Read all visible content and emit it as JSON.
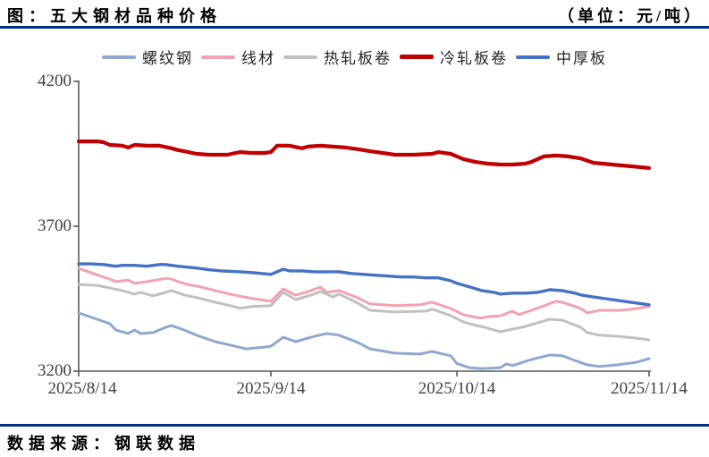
{
  "header": {
    "title": "图：五大钢材品种价格",
    "unit": "（单位：元/吨）"
  },
  "footer": {
    "source": "数据来源：钢联数据"
  },
  "colors": {
    "rule": "#003087",
    "axis": "#595959",
    "tick_label": "#404040"
  },
  "chart_data": {
    "type": "line",
    "title": "五大钢材品种价格",
    "unit": "元/吨",
    "legend_position": "top",
    "grid": false,
    "xlim": [
      0,
      92
    ],
    "ylim": [
      3200,
      4200
    ],
    "x_note": "x = days since 2025/8/14",
    "xticks": [
      {
        "label": "2025/8/14",
        "day": 0
      },
      {
        "label": "2025/9/14",
        "day": 31
      },
      {
        "label": "2025/10/14",
        "day": 61
      },
      {
        "label": "2025/11/14",
        "day": 92
      }
    ],
    "yticks": [
      {
        "label": "4200",
        "value": 4200
      },
      {
        "label": "3700",
        "value": 3700
      },
      {
        "label": "3200",
        "value": 3200
      }
    ],
    "series": [
      {
        "name": "螺纹钢",
        "key": "rebar",
        "color": "#8FA8CE",
        "width": 3,
        "points": [
          [
            0,
            3401
          ],
          [
            3,
            3379
          ],
          [
            5,
            3364
          ],
          [
            6,
            3342
          ],
          [
            8,
            3330
          ],
          [
            9,
            3342
          ],
          [
            10,
            3330
          ],
          [
            12,
            3333
          ],
          [
            14,
            3351
          ],
          [
            15,
            3357
          ],
          [
            17,
            3342
          ],
          [
            19,
            3324
          ],
          [
            22,
            3302
          ],
          [
            25,
            3287
          ],
          [
            27,
            3277
          ],
          [
            30,
            3283
          ],
          [
            31,
            3286
          ],
          [
            33,
            3317
          ],
          [
            35,
            3302
          ],
          [
            38,
            3320
          ],
          [
            40,
            3330
          ],
          [
            42,
            3324
          ],
          [
            45,
            3299
          ],
          [
            47,
            3277
          ],
          [
            51,
            3262
          ],
          [
            55,
            3259
          ],
          [
            57,
            3268
          ],
          [
            60,
            3253
          ],
          [
            61,
            3226
          ],
          [
            63,
            3212
          ],
          [
            65,
            3209
          ],
          [
            68,
            3212
          ],
          [
            69,
            3225
          ],
          [
            70,
            3219
          ],
          [
            73,
            3240
          ],
          [
            76,
            3256
          ],
          [
            78,
            3253
          ],
          [
            80,
            3237
          ],
          [
            82,
            3222
          ],
          [
            84,
            3216
          ],
          [
            87,
            3222
          ],
          [
            90,
            3231
          ],
          [
            92,
            3243
          ]
        ]
      },
      {
        "name": "线材",
        "key": "wire-rod",
        "color": "#F2A2B0",
        "width": 3,
        "points": [
          [
            0,
            3555
          ],
          [
            3,
            3532
          ],
          [
            5,
            3518
          ],
          [
            6,
            3509
          ],
          [
            8,
            3514
          ],
          [
            9,
            3503
          ],
          [
            11,
            3509
          ],
          [
            14,
            3520
          ],
          [
            15,
            3518
          ],
          [
            16,
            3509
          ],
          [
            18,
            3497
          ],
          [
            19,
            3494
          ],
          [
            22,
            3478
          ],
          [
            25,
            3463
          ],
          [
            28,
            3451
          ],
          [
            31,
            3441
          ],
          [
            33,
            3484
          ],
          [
            35,
            3462
          ],
          [
            37,
            3475
          ],
          [
            39,
            3490
          ],
          [
            40,
            3472
          ],
          [
            42,
            3478
          ],
          [
            45,
            3453
          ],
          [
            47,
            3432
          ],
          [
            51,
            3426
          ],
          [
            55,
            3429
          ],
          [
            57,
            3438
          ],
          [
            60,
            3416
          ],
          [
            62,
            3395
          ],
          [
            64,
            3386
          ],
          [
            65,
            3383
          ],
          [
            66,
            3388
          ],
          [
            68,
            3391
          ],
          [
            70,
            3407
          ],
          [
            71,
            3395
          ],
          [
            73,
            3410
          ],
          [
            75,
            3425
          ],
          [
            77,
            3441
          ],
          [
            78,
            3438
          ],
          [
            81,
            3416
          ],
          [
            82,
            3401
          ],
          [
            84,
            3410
          ],
          [
            87,
            3410
          ],
          [
            89,
            3413
          ],
          [
            92,
            3423
          ]
        ]
      },
      {
        "name": "热轧板卷",
        "key": "hot-rolled-coil",
        "color": "#C0C0C0",
        "width": 3,
        "points": [
          [
            0,
            3499
          ],
          [
            3,
            3496
          ],
          [
            5,
            3487
          ],
          [
            7,
            3478
          ],
          [
            9,
            3466
          ],
          [
            10,
            3472
          ],
          [
            12,
            3460
          ],
          [
            14,
            3472
          ],
          [
            15,
            3478
          ],
          [
            17,
            3463
          ],
          [
            19,
            3454
          ],
          [
            22,
            3438
          ],
          [
            25,
            3423
          ],
          [
            26,
            3417
          ],
          [
            28,
            3423
          ],
          [
            31,
            3426
          ],
          [
            33,
            3472
          ],
          [
            35,
            3447
          ],
          [
            38,
            3466
          ],
          [
            39,
            3475
          ],
          [
            41,
            3456
          ],
          [
            42,
            3466
          ],
          [
            45,
            3435
          ],
          [
            47,
            3410
          ],
          [
            51,
            3404
          ],
          [
            56,
            3407
          ],
          [
            57,
            3414
          ],
          [
            60,
            3392
          ],
          [
            62,
            3370
          ],
          [
            64,
            3358
          ],
          [
            65,
            3354
          ],
          [
            68,
            3336
          ],
          [
            72,
            3354
          ],
          [
            74,
            3367
          ],
          [
            76,
            3379
          ],
          [
            78,
            3376
          ],
          [
            81,
            3351
          ],
          [
            82,
            3333
          ],
          [
            84,
            3324
          ],
          [
            87,
            3320
          ],
          [
            90,
            3314
          ],
          [
            92,
            3308
          ]
        ]
      },
      {
        "name": "冷轧板卷",
        "key": "cold-rolled-coil",
        "color": "#C00000",
        "width": 4.2,
        "points": [
          [
            0,
            3993
          ],
          [
            3,
            3993
          ],
          [
            4,
            3990
          ],
          [
            5,
            3981
          ],
          [
            7,
            3978
          ],
          [
            8,
            3972
          ],
          [
            9,
            3981
          ],
          [
            11,
            3978
          ],
          [
            13,
            3978
          ],
          [
            15,
            3969
          ],
          [
            16,
            3963
          ],
          [
            17,
            3959
          ],
          [
            19,
            3950
          ],
          [
            21,
            3947
          ],
          [
            24,
            3947
          ],
          [
            26,
            3956
          ],
          [
            28,
            3953
          ],
          [
            30,
            3953
          ],
          [
            31,
            3956
          ],
          [
            32,
            3978
          ],
          [
            34,
            3978
          ],
          [
            36,
            3969
          ],
          [
            37,
            3975
          ],
          [
            39,
            3978
          ],
          [
            41,
            3975
          ],
          [
            43,
            3972
          ],
          [
            45,
            3966
          ],
          [
            47,
            3959
          ],
          [
            49,
            3953
          ],
          [
            51,
            3947
          ],
          [
            54,
            3947
          ],
          [
            57,
            3950
          ],
          [
            58,
            3956
          ],
          [
            60,
            3950
          ],
          [
            62,
            3932
          ],
          [
            64,
            3922
          ],
          [
            66,
            3916
          ],
          [
            68,
            3913
          ],
          [
            70,
            3913
          ],
          [
            72,
            3916
          ],
          [
            73,
            3922
          ],
          [
            75,
            3941
          ],
          [
            77,
            3944
          ],
          [
            79,
            3941
          ],
          [
            81,
            3934
          ],
          [
            83,
            3919
          ],
          [
            86,
            3913
          ],
          [
            89,
            3907
          ],
          [
            92,
            3901
          ]
        ]
      },
      {
        "name": "中厚板",
        "key": "medium-plate",
        "color": "#4472C4",
        "width": 3.4,
        "points": [
          [
            0,
            3570
          ],
          [
            2,
            3570
          ],
          [
            4,
            3568
          ],
          [
            6,
            3562
          ],
          [
            7,
            3565
          ],
          [
            9,
            3565
          ],
          [
            11,
            3562
          ],
          [
            13,
            3568
          ],
          [
            14,
            3568
          ],
          [
            16,
            3562
          ],
          [
            19,
            3556
          ],
          [
            21,
            3550
          ],
          [
            23,
            3546
          ],
          [
            26,
            3543
          ],
          [
            28,
            3540
          ],
          [
            31,
            3534
          ],
          [
            33,
            3552
          ],
          [
            34,
            3546
          ],
          [
            36,
            3546
          ],
          [
            38,
            3543
          ],
          [
            40,
            3543
          ],
          [
            42,
            3543
          ],
          [
            44,
            3537
          ],
          [
            46,
            3534
          ],
          [
            48,
            3531
          ],
          [
            50,
            3528
          ],
          [
            52,
            3525
          ],
          [
            54,
            3525
          ],
          [
            56,
            3522
          ],
          [
            58,
            3522
          ],
          [
            60,
            3512
          ],
          [
            61,
            3503
          ],
          [
            63,
            3491
          ],
          [
            65,
            3478
          ],
          [
            67,
            3472
          ],
          [
            68,
            3466
          ],
          [
            70,
            3469
          ],
          [
            72,
            3469
          ],
          [
            74,
            3472
          ],
          [
            76,
            3481
          ],
          [
            78,
            3478
          ],
          [
            80,
            3469
          ],
          [
            81,
            3463
          ],
          [
            83,
            3456
          ],
          [
            85,
            3450
          ],
          [
            87,
            3444
          ],
          [
            89,
            3438
          ],
          [
            91,
            3432
          ],
          [
            92,
            3429
          ]
        ]
      }
    ]
  }
}
